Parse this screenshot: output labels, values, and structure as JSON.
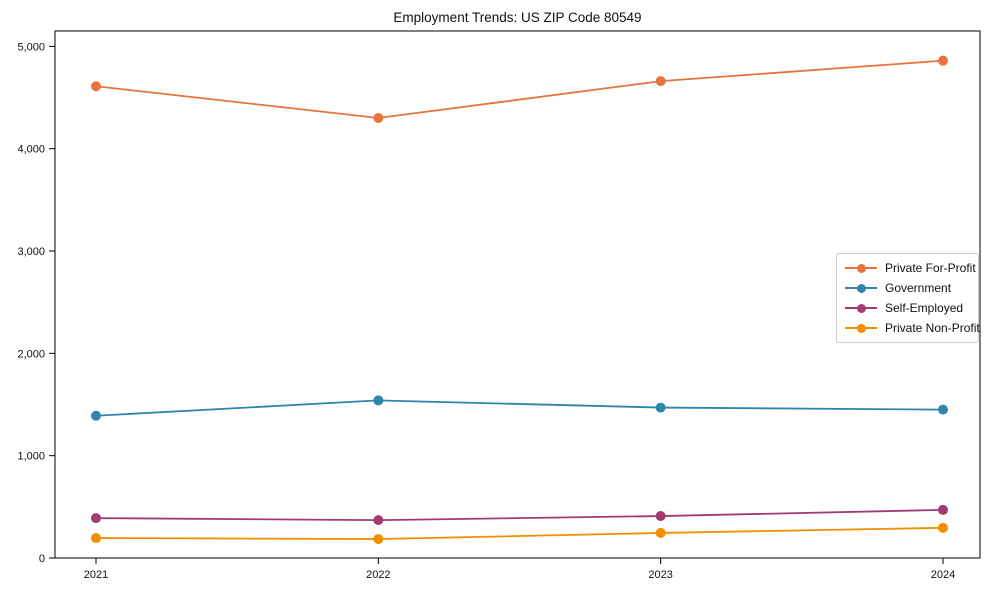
{
  "chart_data": {
    "type": "line",
    "title": "Employment Trends: US ZIP Code 80549",
    "x": [
      2021,
      2022,
      2023,
      2024
    ],
    "x_tick_labels": [
      "2021",
      "2022",
      "2023",
      "2024"
    ],
    "series": [
      {
        "name": "Private For-Profit",
        "color": "#E8743B",
        "values": [
          4610,
          4300,
          4660,
          4860
        ]
      },
      {
        "name": "Government",
        "color": "#2E86AB",
        "values": [
          1390,
          1540,
          1470,
          1450
        ]
      },
      {
        "name": "Self-Employed",
        "color": "#A23B72",
        "values": [
          390,
          370,
          410,
          470
        ]
      },
      {
        "name": "Private Non-Profit",
        "color": "#F18F01",
        "values": [
          195,
          185,
          245,
          295
        ]
      }
    ],
    "ylim": [
      0,
      5150
    ],
    "yticks": [
      0,
      1000,
      2000,
      3000,
      4000,
      5000
    ],
    "ytick_labels": [
      "0",
      "1,000",
      "2,000",
      "3,000",
      "4,000",
      "5,000"
    ],
    "grid": false,
    "legend_position": "right-middle",
    "axis_color": "#000000",
    "background_color": "#ffffff"
  }
}
